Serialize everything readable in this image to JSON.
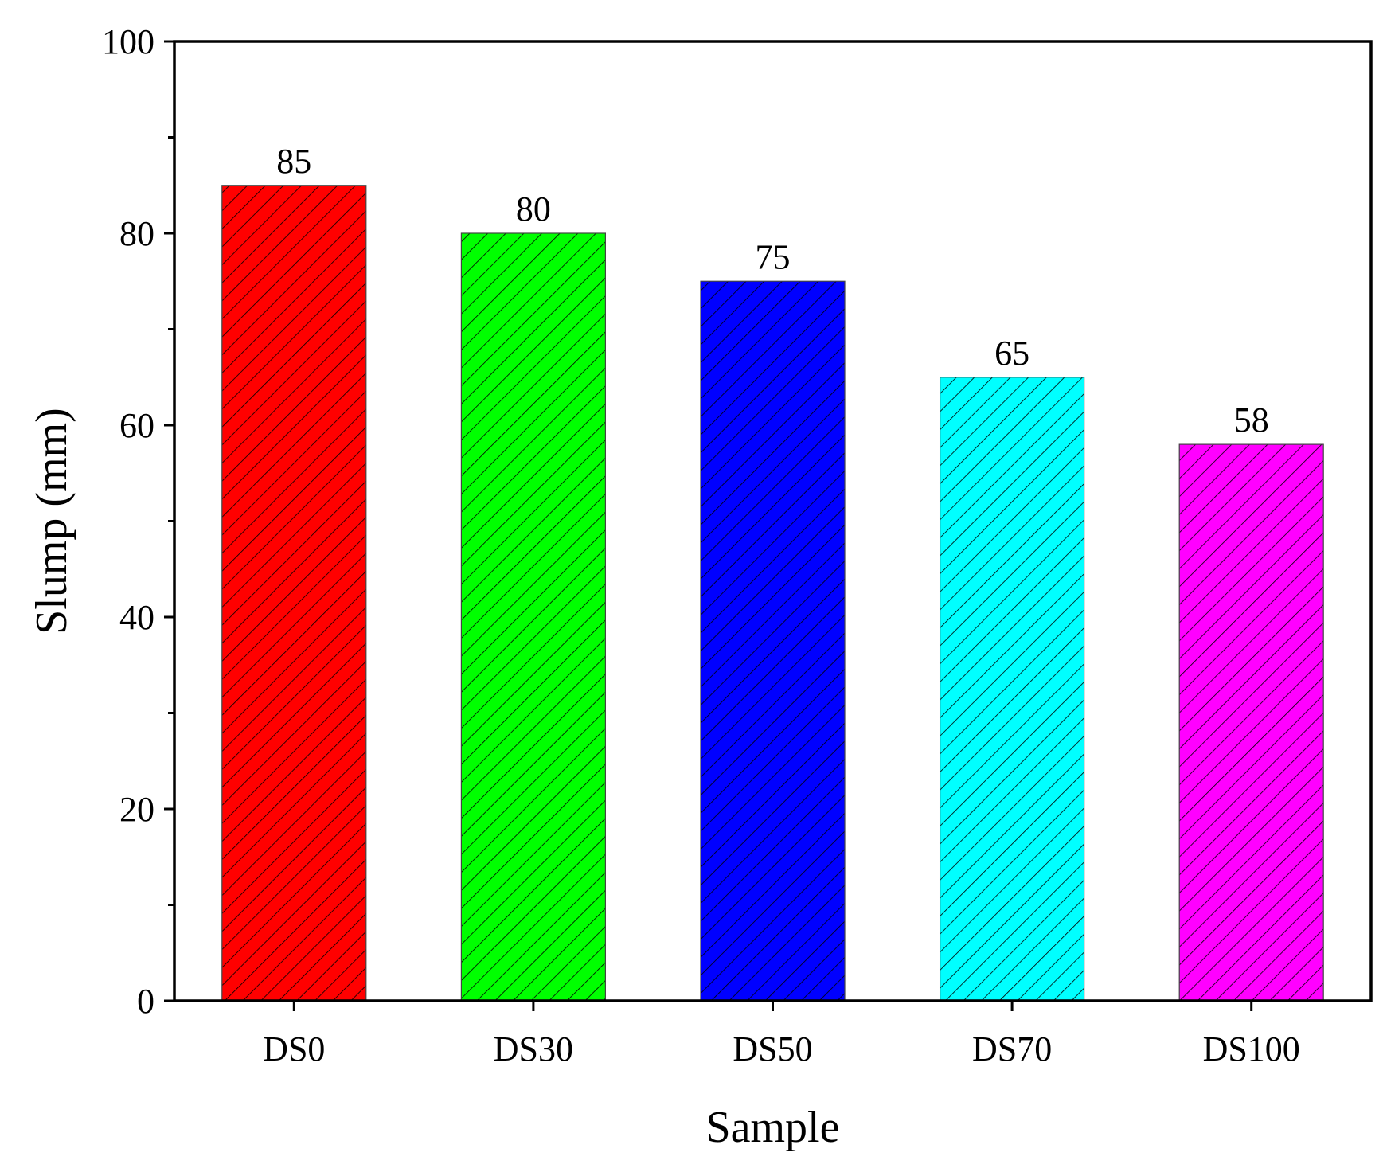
{
  "chart_data": {
    "type": "bar",
    "categories": [
      "DS0",
      "DS30",
      "DS50",
      "DS70",
      "DS100"
    ],
    "values": [
      85,
      80,
      75,
      65,
      58
    ],
    "data_labels": [
      "85",
      "80",
      "75",
      "65",
      "58"
    ],
    "colors": [
      "#ff0000",
      "#00ff00",
      "#0000ff",
      "#00ffff",
      "#ff00ff"
    ],
    "fill_pattern": "diagonal-hatch",
    "xlabel": "Sample",
    "ylabel": "Slump (mm)",
    "ylim": [
      0,
      100
    ],
    "yticks": [
      0,
      20,
      40,
      60,
      80,
      100
    ],
    "ytick_labels": [
      "0",
      "20",
      "40",
      "60",
      "80",
      "100"
    ],
    "y_minor_step": 10,
    "grid": false,
    "legend": "none"
  }
}
